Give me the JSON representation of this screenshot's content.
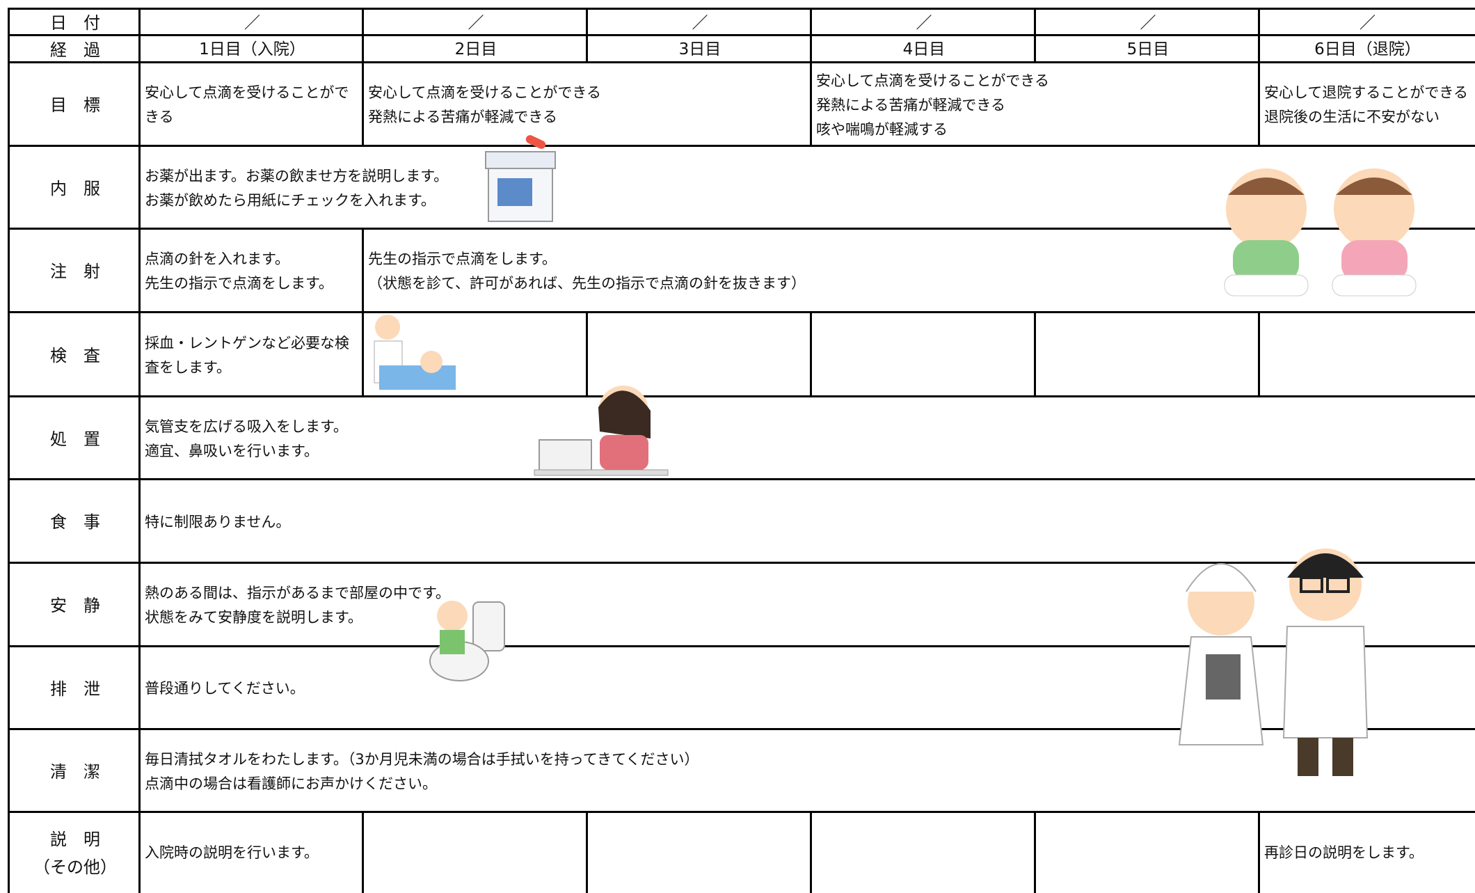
{
  "table": {
    "rows": [
      {
        "label": [
          "日　付"
        ],
        "cells": [
          {
            "lines": [
              "／"
            ]
          },
          {
            "lines": [
              "／"
            ]
          },
          {
            "lines": [
              "／"
            ]
          },
          {
            "lines": [
              "／"
            ]
          },
          {
            "lines": [
              "／"
            ]
          },
          {
            "lines": [
              "／"
            ]
          }
        ]
      },
      {
        "label": [
          "経　過"
        ],
        "cells": [
          {
            "lines": [
              "1日目（入院）"
            ]
          },
          {
            "lines": [
              "2日目"
            ]
          },
          {
            "lines": [
              "3日目"
            ]
          },
          {
            "lines": [
              "4日目"
            ]
          },
          {
            "lines": [
              "5日目"
            ]
          },
          {
            "lines": [
              "6日目（退院）"
            ]
          }
        ]
      },
      {
        "label": [
          "目　標"
        ],
        "cells": [
          {
            "lines": [
              "安心して点滴を受けることがで",
              "きる"
            ]
          },
          {
            "lines": [
              "安心して点滴を受けることができる",
              "発熱による苦痛が軽減できる"
            ]
          },
          {
            "lines": [
              "安心して点滴を受けることができる",
              "発熱による苦痛が軽減できる",
              "咳や喘鳴が軽減する"
            ]
          },
          {
            "lines": [
              "安心して退院することができる",
              "退院後の生活に不安がない"
            ]
          }
        ]
      },
      {
        "label": [
          "内　服"
        ],
        "cells": [
          {
            "lines": [
              "お薬が出ます。お薬の飲ませ方を説明します。",
              "お薬が飲めたら用紙にチェックを入れます。"
            ]
          }
        ]
      },
      {
        "label": [
          "注　射"
        ],
        "cells": [
          {
            "lines": [
              "点滴の針を入れます。",
              "先生の指示で点滴をします。"
            ]
          },
          {
            "lines": [
              "先生の指示で点滴をします。",
              "（状態を診て、許可があれば、先生の指示で点滴の針を抜きます）"
            ]
          }
        ]
      },
      {
        "label": [
          "検　査"
        ],
        "cells": [
          {
            "lines": [
              "採血・レントゲンなど必要な検",
              "査をします。"
            ]
          }
        ]
      },
      {
        "label": [
          "処　置"
        ],
        "cells": [
          {
            "lines": [
              "気管支を広げる吸入をします。",
              "適宜、鼻吸いを行います。"
            ]
          }
        ]
      },
      {
        "label": [
          "食　事"
        ],
        "cells": [
          {
            "lines": [
              "特に制限ありません。"
            ]
          }
        ]
      },
      {
        "label": [
          "安　静"
        ],
        "cells": [
          {
            "lines": [
              "熱のある間は、指示があるまで部屋の中です。",
              "状態をみて安静度を説明します。"
            ]
          }
        ]
      },
      {
        "label": [
          "排　泄"
        ],
        "cells": [
          {
            "lines": [
              "普段通りしてください。"
            ]
          }
        ]
      },
      {
        "label": [
          "清　潔"
        ],
        "cells": [
          {
            "lines": [
              "毎日清拭タオルをわたします。（3か月児未満の場合は手拭いを持ってきてください）",
              "点滴中の場合は看護師にお声かけください。"
            ]
          }
        ]
      },
      {
        "label": [
          "説　明",
          "（その他）"
        ],
        "cells": [
          {
            "lines": [
              "入院時の説明を行います。"
            ]
          },
          {
            "lines": [
              "再診日の説明をします。"
            ]
          }
        ]
      }
    ]
  }
}
